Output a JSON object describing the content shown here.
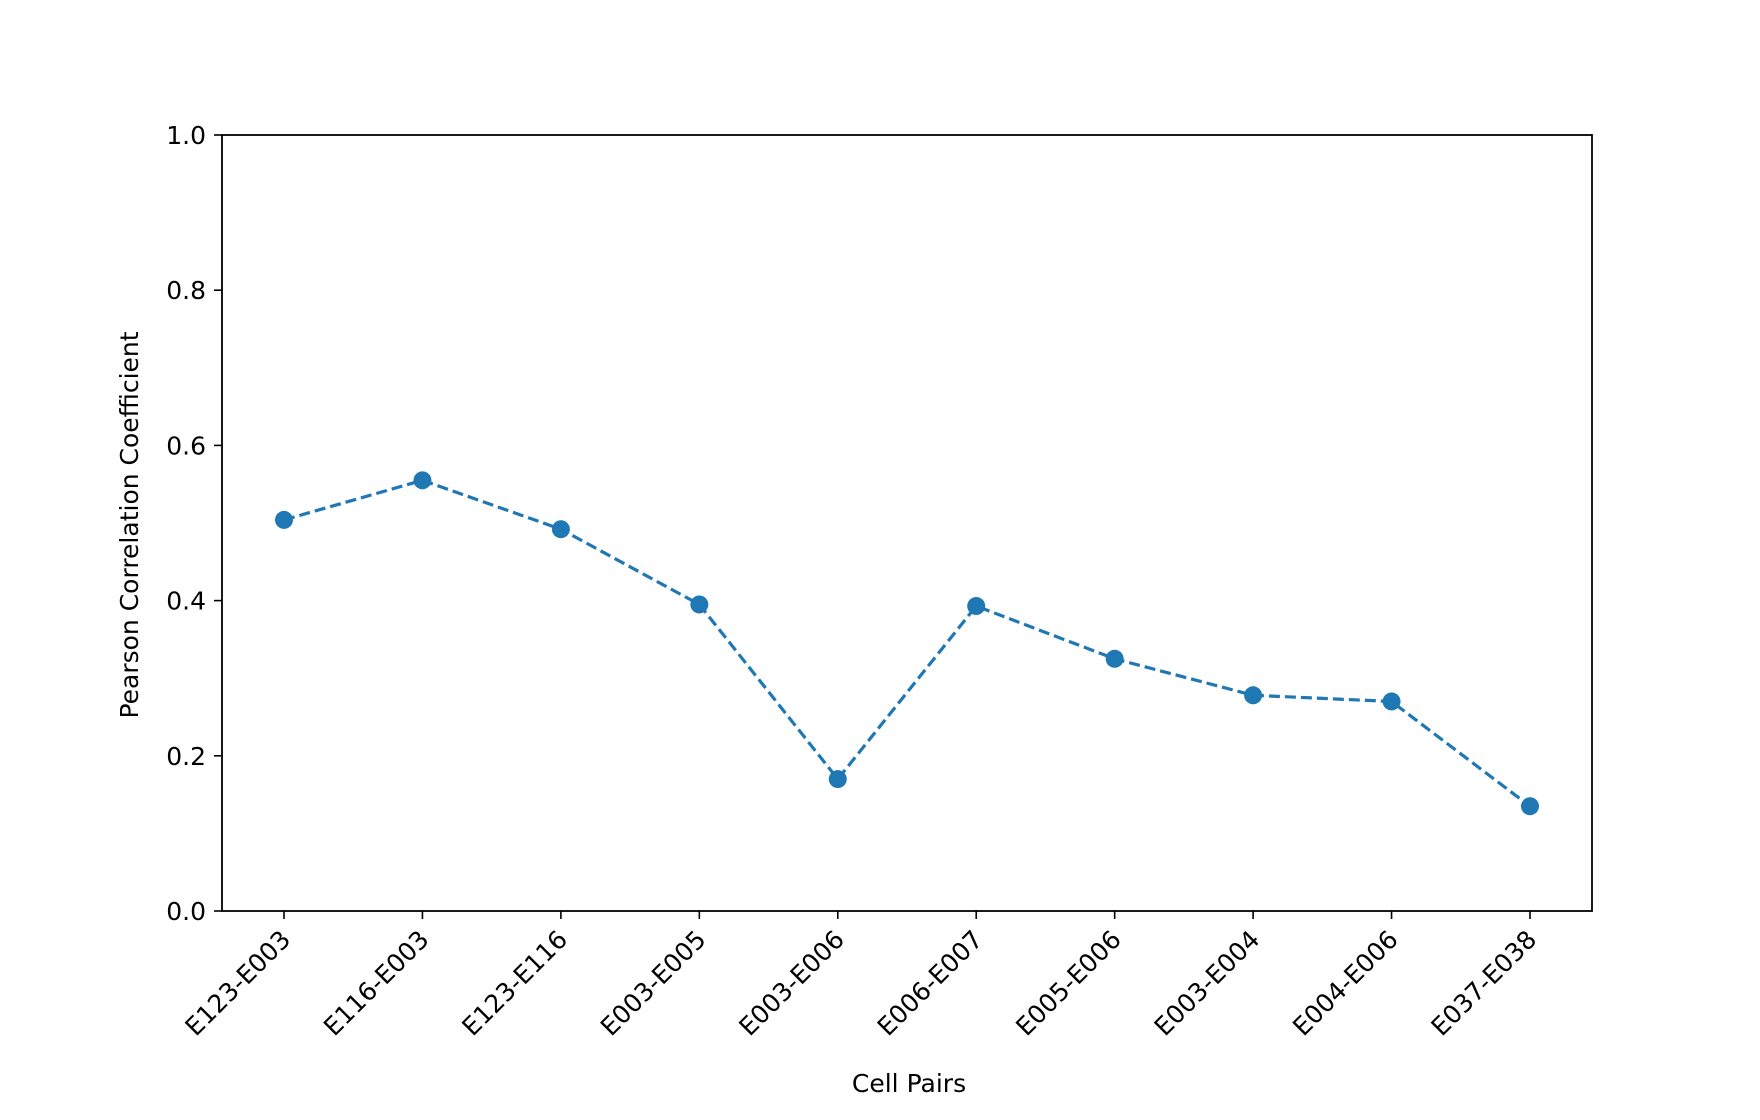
{
  "chart_data": {
    "type": "line",
    "xlabel": "Cell Pairs",
    "ylabel": "Pearson Correlation Coefficient",
    "ylim": [
      0.0,
      1.0
    ],
    "yticks": [
      "0.0",
      "0.2",
      "0.4",
      "0.6",
      "0.8",
      "1.0"
    ],
    "grid": false,
    "categories": [
      "E123-E003",
      "E116-E003",
      "E123-E116",
      "E003-E005",
      "E003-E006",
      "E006-E007",
      "E005-E006",
      "E003-E004",
      "E004-E006",
      "E037-E038"
    ],
    "series": [
      {
        "values": [
          0.504,
          0.555,
          0.492,
          0.395,
          0.17,
          0.393,
          0.325,
          0.278,
          0.27,
          0.135
        ],
        "color": "#1f77b4",
        "line_style": "dashed",
        "marker": "circle"
      }
    ]
  }
}
